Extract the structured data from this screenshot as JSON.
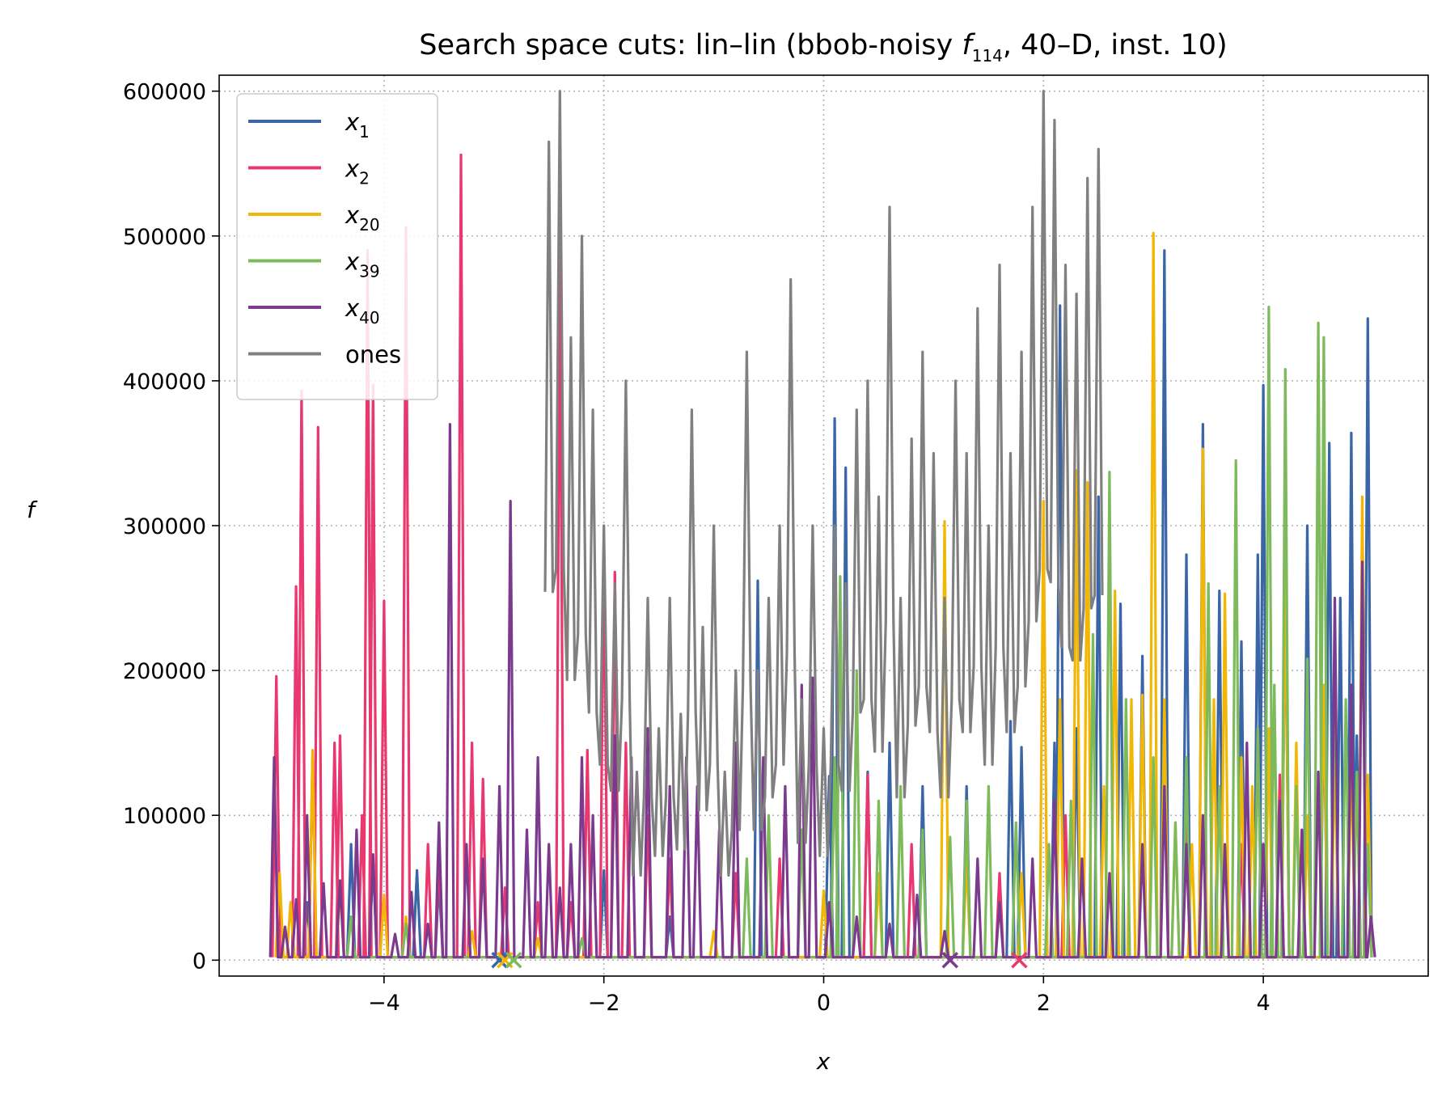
{
  "chart_data": {
    "type": "line",
    "title": {
      "prefix": "Search space cuts: lin–lin (bbob-noisy ",
      "f": "f",
      "f_sub": "114",
      "suffix": ", 40–D, inst. 10)"
    },
    "xlabel": "x",
    "ylabel": "f",
    "xlim": [
      -5.5,
      5.5
    ],
    "ylim": [
      -11000,
      611000
    ],
    "x_ticks": [
      -4,
      -2,
      0,
      2,
      4
    ],
    "x_tick_labels": [
      "−4",
      "−2",
      "0",
      "2",
      "4"
    ],
    "y_ticks": [
      0,
      100000,
      200000,
      300000,
      400000,
      500000,
      600000
    ],
    "y_tick_labels": [
      "0",
      "100000",
      "200000",
      "300000",
      "400000",
      "500000",
      "600000"
    ],
    "grid": true,
    "legend_position": "upper-left",
    "series": [
      {
        "name": "x_1",
        "sym": "x",
        "sub": "1",
        "color": "#3a66a8",
        "min_x": -2.95,
        "spikes": [
          [
            -4.7,
            40000
          ],
          [
            -4.3,
            80000
          ],
          [
            -4.1,
            70000
          ],
          [
            -3.7,
            62000
          ],
          [
            -3.5,
            55000
          ],
          [
            -2.0,
            62000
          ],
          [
            -1.4,
            30000
          ],
          [
            -0.6,
            262000
          ],
          [
            0.05,
            127000
          ],
          [
            0.1,
            374000
          ],
          [
            0.2,
            340000
          ],
          [
            0.4,
            130000
          ],
          [
            0.6,
            150000
          ],
          [
            0.9,
            120000
          ],
          [
            1.3,
            120000
          ],
          [
            1.7,
            165000
          ],
          [
            1.8,
            147000
          ],
          [
            2.1,
            150000
          ],
          [
            2.15,
            452000
          ],
          [
            2.3,
            160000
          ],
          [
            2.5,
            320000
          ],
          [
            2.7,
            246000
          ],
          [
            2.9,
            210000
          ],
          [
            3.1,
            490000
          ],
          [
            3.3,
            280000
          ],
          [
            3.45,
            370000
          ],
          [
            3.6,
            255000
          ],
          [
            3.8,
            220000
          ],
          [
            3.95,
            280000
          ],
          [
            4.0,
            397000
          ],
          [
            4.2,
            260000
          ],
          [
            4.4,
            300000
          ],
          [
            4.55,
            175000
          ],
          [
            4.6,
            357000
          ],
          [
            4.7,
            250000
          ],
          [
            4.8,
            364000
          ],
          [
            4.85,
            155000
          ],
          [
            4.95,
            443000
          ]
        ]
      },
      {
        "name": "x_2",
        "sym": "x",
        "sub": "2",
        "color": "#e8386f",
        "min_x": 1.78,
        "spikes": [
          [
            -4.98,
            196000
          ],
          [
            -4.8,
            258000
          ],
          [
            -4.75,
            393000
          ],
          [
            -4.65,
            140000
          ],
          [
            -4.6,
            368000
          ],
          [
            -4.45,
            150000
          ],
          [
            -4.4,
            155000
          ],
          [
            -4.2,
            100000
          ],
          [
            -4.15,
            490000
          ],
          [
            -4.1,
            397000
          ],
          [
            -4.0,
            248000
          ],
          [
            -3.8,
            506000
          ],
          [
            -3.6,
            80000
          ],
          [
            -3.5,
            70000
          ],
          [
            -3.3,
            556000
          ],
          [
            -3.2,
            150000
          ],
          [
            -3.1,
            125000
          ],
          [
            -2.9,
            50000
          ],
          [
            -2.6,
            40000
          ],
          [
            -2.4,
            490000
          ],
          [
            -2.3,
            40000
          ],
          [
            -2.15,
            145000
          ],
          [
            -2.0,
            292000
          ],
          [
            -1.9,
            268000
          ],
          [
            -1.8,
            150000
          ],
          [
            -1.6,
            100000
          ],
          [
            -1.4,
            70000
          ],
          [
            -0.8,
            60000
          ],
          [
            -0.4,
            70000
          ],
          [
            0.4,
            128000
          ],
          [
            0.8,
            80000
          ],
          [
            1.6,
            60000
          ],
          [
            2.2,
            100000
          ],
          [
            3.3,
            100000
          ],
          [
            3.8,
            80000
          ],
          [
            4.15,
            128000
          ]
        ]
      },
      {
        "name": "x_20",
        "sym": "x",
        "sub": "20",
        "color": "#f2b705",
        "min_x": -2.9,
        "spikes": [
          [
            -4.95,
            60000
          ],
          [
            -4.85,
            40000
          ],
          [
            -4.65,
            145000
          ],
          [
            -4.4,
            50000
          ],
          [
            -4.0,
            45000
          ],
          [
            -3.8,
            30000
          ],
          [
            -3.2,
            20000
          ],
          [
            -2.6,
            15000
          ],
          [
            -1.0,
            20000
          ],
          [
            0.0,
            48000
          ],
          [
            0.5,
            60000
          ],
          [
            1.1,
            303000
          ],
          [
            1.3,
            70000
          ],
          [
            1.8,
            60000
          ],
          [
            2.0,
            317000
          ],
          [
            2.15,
            180000
          ],
          [
            2.3,
            338000
          ],
          [
            2.4,
            330000
          ],
          [
            2.55,
            120000
          ],
          [
            2.65,
            255000
          ],
          [
            2.8,
            180000
          ],
          [
            2.9,
            183000
          ],
          [
            3.0,
            502000
          ],
          [
            3.1,
            180000
          ],
          [
            3.2,
            95000
          ],
          [
            3.35,
            80000
          ],
          [
            3.45,
            353000
          ],
          [
            3.55,
            180000
          ],
          [
            3.65,
            253000
          ],
          [
            3.8,
            140000
          ],
          [
            3.9,
            120000
          ],
          [
            4.05,
            160000
          ],
          [
            4.2,
            270000
          ],
          [
            4.3,
            150000
          ],
          [
            4.4,
            100000
          ],
          [
            4.55,
            190000
          ],
          [
            4.65,
            145000
          ],
          [
            4.8,
            145000
          ],
          [
            4.9,
            320000
          ],
          [
            4.95,
            128000
          ]
        ]
      },
      {
        "name": "x_39",
        "sym": "x",
        "sub": "39",
        "color": "#7dba5c",
        "min_x": -2.82,
        "spikes": [
          [
            -4.3,
            30000
          ],
          [
            -3.8,
            25000
          ],
          [
            -2.2,
            15000
          ],
          [
            -0.7,
            70000
          ],
          [
            -0.5,
            100000
          ],
          [
            -0.2,
            90000
          ],
          [
            0.1,
            140000
          ],
          [
            0.15,
            265000
          ],
          [
            0.3,
            200000
          ],
          [
            0.5,
            110000
          ],
          [
            0.7,
            120000
          ],
          [
            0.9,
            90000
          ],
          [
            1.15,
            85000
          ],
          [
            1.3,
            110000
          ],
          [
            1.5,
            120000
          ],
          [
            1.75,
            95000
          ],
          [
            2.05,
            80000
          ],
          [
            2.25,
            110000
          ],
          [
            2.45,
            225000
          ],
          [
            2.6,
            337000
          ],
          [
            2.75,
            180000
          ],
          [
            3.0,
            140000
          ],
          [
            3.2,
            95000
          ],
          [
            3.3,
            140000
          ],
          [
            3.5,
            260000
          ],
          [
            3.6,
            120000
          ],
          [
            3.75,
            345000
          ],
          [
            3.95,
            160000
          ],
          [
            4.05,
            451000
          ],
          [
            4.1,
            190000
          ],
          [
            4.2,
            408000
          ],
          [
            4.3,
            120000
          ],
          [
            4.4,
            208000
          ],
          [
            4.5,
            440000
          ],
          [
            4.55,
            430000
          ],
          [
            4.65,
            210000
          ],
          [
            4.75,
            180000
          ],
          [
            4.85,
            130000
          ],
          [
            4.95,
            80000
          ]
        ]
      },
      {
        "name": "x_40",
        "sym": "x",
        "sub": "40",
        "color": "#7c3a8e",
        "min_x": 1.15,
        "spikes": [
          [
            -5.0,
            140000
          ],
          [
            -4.9,
            23000
          ],
          [
            -4.8,
            42000
          ],
          [
            -4.7,
            100000
          ],
          [
            -4.55,
            53000
          ],
          [
            -4.4,
            55000
          ],
          [
            -4.25,
            90000
          ],
          [
            -4.1,
            73000
          ],
          [
            -3.9,
            18000
          ],
          [
            -3.75,
            47000
          ],
          [
            -3.6,
            25000
          ],
          [
            -3.5,
            95000
          ],
          [
            -3.4,
            370000
          ],
          [
            -3.25,
            80000
          ],
          [
            -3.1,
            70000
          ],
          [
            -2.95,
            120000
          ],
          [
            -2.85,
            317000
          ],
          [
            -2.7,
            90000
          ],
          [
            -2.6,
            140000
          ],
          [
            -2.5,
            80000
          ],
          [
            -2.4,
            50000
          ],
          [
            -2.3,
            80000
          ],
          [
            -2.2,
            140000
          ],
          [
            -2.1,
            100000
          ],
          [
            -1.9,
            155000
          ],
          [
            -1.75,
            140000
          ],
          [
            -1.6,
            160000
          ],
          [
            -1.4,
            120000
          ],
          [
            -1.25,
            140000
          ],
          [
            -1.15,
            120000
          ],
          [
            -0.95,
            90000
          ],
          [
            -0.8,
            150000
          ],
          [
            -0.55,
            140000
          ],
          [
            -0.35,
            120000
          ],
          [
            -0.2,
            190000
          ],
          [
            -0.1,
            195000
          ],
          [
            0.05,
            40000
          ],
          [
            0.3,
            30000
          ],
          [
            0.6,
            25000
          ],
          [
            0.85,
            45000
          ],
          [
            1.1,
            20000
          ],
          [
            1.4,
            70000
          ],
          [
            1.6,
            40000
          ],
          [
            1.9,
            70000
          ],
          [
            2.1,
            110000
          ],
          [
            2.35,
            70000
          ],
          [
            2.6,
            60000
          ],
          [
            2.9,
            80000
          ],
          [
            3.1,
            120000
          ],
          [
            3.3,
            80000
          ],
          [
            3.45,
            100000
          ],
          [
            3.65,
            80000
          ],
          [
            3.85,
            150000
          ],
          [
            4.0,
            80000
          ],
          [
            4.15,
            110000
          ],
          [
            4.35,
            90000
          ],
          [
            4.5,
            130000
          ],
          [
            4.65,
            250000
          ],
          [
            4.8,
            190000
          ],
          [
            4.9,
            275000
          ],
          [
            4.98,
            30000
          ]
        ]
      },
      {
        "name": "ones",
        "sym": "ones",
        "sub": "",
        "color": "#808080",
        "min_x": null,
        "spikes": [
          [
            -2.5,
            565000
          ],
          [
            -2.4,
            600000
          ],
          [
            -2.3,
            430000
          ],
          [
            -2.2,
            500000
          ],
          [
            -2.1,
            380000
          ],
          [
            -2.0,
            300000
          ],
          [
            -1.9,
            260000
          ],
          [
            -1.8,
            400000
          ],
          [
            -1.7,
            130000
          ],
          [
            -1.6,
            250000
          ],
          [
            -1.5,
            160000
          ],
          [
            -1.4,
            250000
          ],
          [
            -1.3,
            170000
          ],
          [
            -1.2,
            380000
          ],
          [
            -1.1,
            230000
          ],
          [
            -1.0,
            300000
          ],
          [
            -0.9,
            130000
          ],
          [
            -0.8,
            200000
          ],
          [
            -0.7,
            420000
          ],
          [
            -0.6,
            200000
          ],
          [
            -0.5,
            250000
          ],
          [
            -0.4,
            300000
          ],
          [
            -0.3,
            470000
          ],
          [
            -0.2,
            180000
          ],
          [
            -0.1,
            300000
          ],
          [
            0.0,
            160000
          ],
          [
            0.1,
            300000
          ],
          [
            0.2,
            260000
          ],
          [
            0.3,
            380000
          ],
          [
            0.4,
            400000
          ],
          [
            0.5,
            320000
          ],
          [
            0.6,
            520000
          ],
          [
            0.7,
            250000
          ],
          [
            0.8,
            360000
          ],
          [
            0.9,
            420000
          ],
          [
            1.0,
            350000
          ],
          [
            1.1,
            250000
          ],
          [
            1.2,
            400000
          ],
          [
            1.3,
            350000
          ],
          [
            1.4,
            450000
          ],
          [
            1.5,
            300000
          ],
          [
            1.6,
            480000
          ],
          [
            1.7,
            350000
          ],
          [
            1.8,
            420000
          ],
          [
            1.9,
            520000
          ],
          [
            2.0,
            600000
          ],
          [
            2.1,
            580000
          ],
          [
            2.2,
            480000
          ],
          [
            2.3,
            460000
          ],
          [
            2.4,
            540000
          ],
          [
            2.5,
            560000
          ]
        ]
      }
    ]
  }
}
